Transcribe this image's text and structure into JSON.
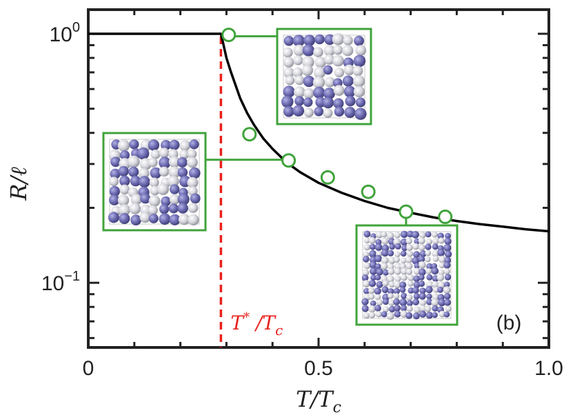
{
  "chart_data": {
    "type": "line",
    "xlabel": "T/T",
    "xlabel_sub": "c",
    "ylabel": "R/ℓ",
    "xlim": [
      0,
      1.0
    ],
    "ylim": [
      0.055,
      1.25
    ],
    "yscale": "log",
    "x_tick_labels": [
      {
        "value": 0,
        "text": "0"
      },
      {
        "value": 0.5,
        "text": "0.5"
      },
      {
        "value": 1.0,
        "text": "1.0"
      }
    ],
    "y_tick_labels": [
      {
        "value": 1.0,
        "base": "10",
        "exp": "0"
      },
      {
        "value": 0.1,
        "base": "10",
        "exp": "−1"
      }
    ],
    "threshold": {
      "x": 0.288,
      "label_main": "T",
      "label_sup": "*",
      "label_rest": " /T",
      "label_sub": "c",
      "color": "#e8211c"
    },
    "series": [
      {
        "kind": "line",
        "color": "#000000",
        "x": [
          0,
          0.288,
          0.292,
          0.3,
          0.31,
          0.32,
          0.33,
          0.345,
          0.36,
          0.38,
          0.4,
          0.43,
          0.46,
          0.5,
          0.55,
          0.6,
          0.65,
          0.7,
          0.75,
          0.8,
          0.85,
          0.9,
          0.95,
          1.0
        ],
        "y": [
          1.0,
          1.0,
          0.93,
          0.8,
          0.7,
          0.62,
          0.55,
          0.48,
          0.43,
          0.38,
          0.345,
          0.305,
          0.278,
          0.252,
          0.23,
          0.213,
          0.2,
          0.191,
          0.183,
          0.177,
          0.172,
          0.168,
          0.164,
          0.161
        ]
      },
      {
        "kind": "scatter",
        "color": "#3fa33a",
        "marker": "open-circle",
        "x": [
          0.305,
          0.35,
          0.435,
          0.52,
          0.608,
          0.69,
          0.775
        ],
        "y": [
          0.99,
          0.395,
          0.31,
          0.265,
          0.232,
          0.193,
          0.184
        ]
      }
    ],
    "panel_label": "(b)",
    "insets": [
      {
        "name": "ordered-inset",
        "anchor_x": 0.305,
        "anchor_y": 0.99
      },
      {
        "name": "mixed-inset",
        "anchor_x": 0.435,
        "anchor_y": 0.31
      },
      {
        "name": "disordered-inset",
        "anchor_x": 0.69,
        "anchor_y": 0.193
      }
    ],
    "colors": {
      "frame": "#222222",
      "inset_border": "#3fa33a",
      "bead_light": "#d9d9e0",
      "bead_dark": "#6c6ab0"
    }
  }
}
